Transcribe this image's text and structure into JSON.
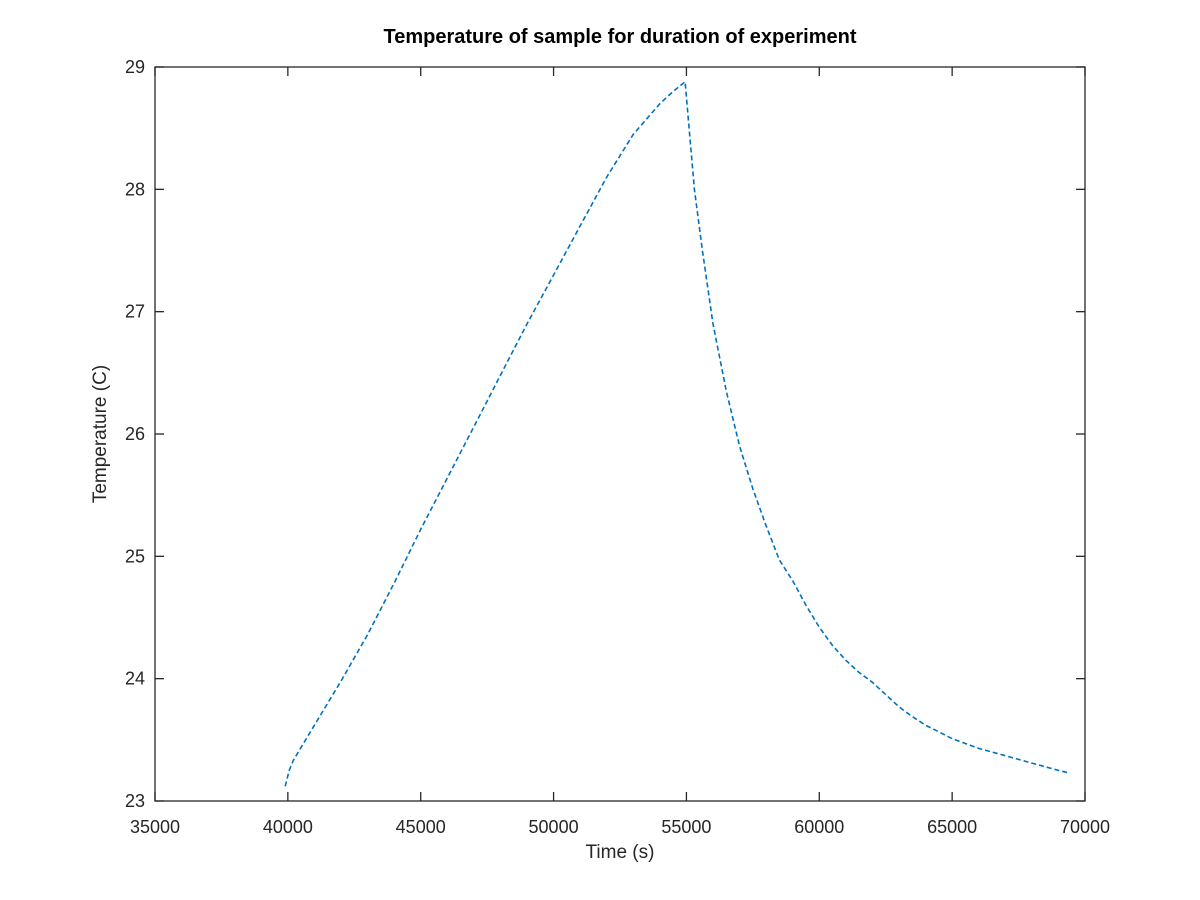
{
  "chart_data": {
    "type": "line",
    "title": "Temperature of sample for duration of experiment",
    "xlabel": "Time (s)",
    "ylabel": "Temperature (C)",
    "xlim": [
      35000,
      70000
    ],
    "ylim": [
      23,
      29
    ],
    "xticks": [
      35000,
      40000,
      45000,
      50000,
      55000,
      60000,
      65000,
      70000
    ],
    "yticks": [
      23,
      24,
      25,
      26,
      27,
      28,
      29
    ],
    "grid": false,
    "line_style": "dashed",
    "series": [
      {
        "color": "#0072bd",
        "x": [
          39900,
          40050,
          40200,
          41000,
          42000,
          43000,
          44000,
          45000,
          46000,
          47000,
          48000,
          49000,
          50000,
          51000,
          52000,
          53000,
          54000,
          54500,
          54950,
          55100,
          55300,
          55600,
          56000,
          56500,
          57000,
          57500,
          58000,
          58500,
          59000,
          59500,
          60000,
          60500,
          61000,
          61500,
          62000,
          62500,
          63000,
          63500,
          64000,
          65000,
          66000,
          67000,
          68000,
          69000,
          69400
        ],
        "y": [
          23.12,
          23.25,
          23.33,
          23.62,
          23.98,
          24.36,
          24.78,
          25.22,
          25.64,
          26.06,
          26.48,
          26.9,
          27.3,
          27.7,
          28.1,
          28.45,
          28.7,
          28.8,
          28.88,
          28.5,
          28.0,
          27.5,
          26.9,
          26.35,
          25.9,
          25.55,
          25.25,
          24.97,
          24.8,
          24.6,
          24.42,
          24.27,
          24.15,
          24.05,
          23.97,
          23.87,
          23.77,
          23.69,
          23.62,
          23.51,
          23.43,
          23.37,
          23.31,
          23.25,
          23.23
        ]
      }
    ]
  }
}
